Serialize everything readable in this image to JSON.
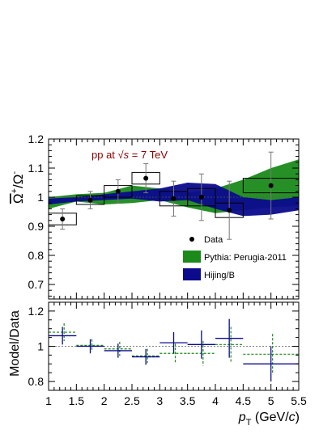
{
  "chart_data": [
    {
      "type": "scatter",
      "title": "pp at √s = 7 TeV",
      "title_parts": {
        "prefix": "pp at ",
        "sqrt": "√",
        "var": "s",
        "suffix": " = 7 TeV"
      },
      "ylabel": "Ω̅⁺/Ω⁻",
      "ylabel_parts": {
        "num": "Ω",
        "num_sup": "+",
        "slash": "/",
        "den": "Ω",
        "den_sup": "-"
      },
      "xlim": [
        1,
        5.5
      ],
      "ylim": [
        0.65,
        1.2
      ],
      "yticks": [
        "0.7",
        "0.8",
        "0.9",
        "1",
        "1.1",
        "1.2"
      ],
      "reference_line": 1,
      "legend_position": "lower-right",
      "colors": {
        "pythia": "#1a8a1a",
        "hijing": "#0b0b8c",
        "title": "#8b0000"
      },
      "series": [
        {
          "name": "Data",
          "x": [
            1.25,
            1.75,
            2.25,
            2.75,
            3.25,
            3.75,
            4.25,
            5.0
          ],
          "x_err": [
            0.25,
            0.25,
            0.25,
            0.25,
            0.25,
            0.25,
            0.25,
            0.5
          ],
          "y": [
            0.925,
            0.99,
            1.02,
            1.065,
            0.995,
            1.0,
            0.955,
            1.04
          ],
          "y_stat_err": [
            0.035,
            0.03,
            0.04,
            0.05,
            0.06,
            0.08,
            0.1,
            0.115
          ],
          "y_syst_err": [
            0.02,
            0.015,
            0.02,
            0.02,
            0.025,
            0.03,
            0.025,
            0.025
          ]
        },
        {
          "name": "Pythia: Perugia-2011",
          "x": [
            1.0,
            1.5,
            2.0,
            2.5,
            3.0,
            3.5,
            4.0,
            4.5,
            5.0,
            5.5
          ],
          "y_low": [
            0.96,
            0.985,
            0.975,
            0.98,
            0.99,
            0.965,
            0.945,
            0.955,
            0.965,
            0.97
          ],
          "y_high": [
            1.0,
            1.01,
            1.015,
            1.04,
            1.03,
            1.015,
            1.03,
            1.06,
            1.1,
            1.13
          ]
        },
        {
          "name": "Hijing/B",
          "x": [
            1.0,
            1.5,
            2.0,
            2.5,
            3.0,
            3.5,
            4.0,
            4.5,
            5.0,
            5.5
          ],
          "y_low": [
            0.975,
            0.985,
            0.99,
            0.995,
            0.985,
            0.99,
            0.96,
            0.935,
            0.94,
            0.955
          ],
          "y_high": [
            0.995,
            1.0,
            1.01,
            1.02,
            1.03,
            1.05,
            1.045,
            1.0,
            0.99,
            1.0
          ]
        }
      ]
    },
    {
      "type": "scatter",
      "ylabel": "Model/Data",
      "xlabel": "p_T (GeV/c)",
      "xlabel_parts": {
        "p": "p",
        "sub": "T",
        "rest": " (GeV/",
        "c": "c",
        "close": ")"
      },
      "xlim": [
        1,
        5.5
      ],
      "ylim": [
        0.75,
        1.25
      ],
      "xticks": [
        "1",
        "1.5",
        "2",
        "2.5",
        "3",
        "3.5",
        "4",
        "4.5",
        "5",
        "5.5"
      ],
      "yticks": [
        "0.8",
        "1",
        "1.2"
      ],
      "reference_line": 1,
      "series": [
        {
          "name": "Pythia: Perugia-2011",
          "x": [
            1.25,
            1.75,
            2.25,
            2.75,
            3.25,
            3.75,
            4.25,
            5.0
          ],
          "x_err": [
            0.25,
            0.25,
            0.25,
            0.25,
            0.25,
            0.25,
            0.25,
            0.5
          ],
          "y": [
            1.08,
            1.005,
            0.985,
            0.945,
            0.96,
            0.96,
            1.01,
            0.955
          ],
          "y_err": [
            0.05,
            0.035,
            0.04,
            0.04,
            0.055,
            0.07,
            0.1,
            0.115
          ]
        },
        {
          "name": "Hijing/B",
          "x": [
            1.25,
            1.75,
            2.25,
            2.75,
            3.25,
            3.75,
            4.25,
            5.0
          ],
          "x_err": [
            0.25,
            0.25,
            0.25,
            0.25,
            0.25,
            0.25,
            0.25,
            0.5
          ],
          "y": [
            1.06,
            1.0,
            0.975,
            0.94,
            1.02,
            1.01,
            1.045,
            0.9
          ],
          "y_err": [
            0.05,
            0.04,
            0.04,
            0.045,
            0.06,
            0.08,
            0.11,
            0.1
          ]
        }
      ]
    }
  ]
}
